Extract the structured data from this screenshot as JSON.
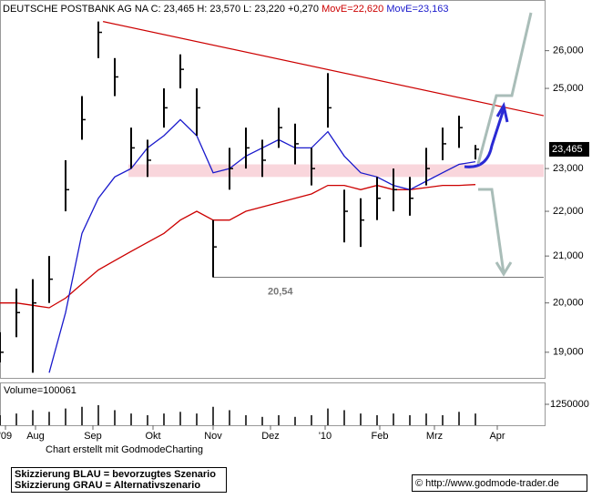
{
  "chart_data": {
    "type": "ohlc",
    "title": "DEUTSCHE POSTBANK AG NA",
    "quote": "C: 23,465 H: 23,570 L: 23,220 +0,270",
    "log_scale": true,
    "xlim": [
      0,
      199
    ],
    "ylim": [
      18500,
      27200
    ],
    "yticks": [
      {
        "value": 19000,
        "label": "19,000"
      },
      {
        "value": 20000,
        "label": "20,000"
      },
      {
        "value": 21000,
        "label": "21,000"
      },
      {
        "value": 22000,
        "label": "22,000"
      },
      {
        "value": 23000,
        "label": "23,000"
      },
      {
        "value": 25000,
        "label": "25,000"
      },
      {
        "value": 26000,
        "label": "26,000"
      }
    ],
    "xticks": [
      {
        "value": 2,
        "label": "'09"
      },
      {
        "value": 13,
        "label": "Aug"
      },
      {
        "value": 34,
        "label": "Sep"
      },
      {
        "value": 56,
        "label": "Okt"
      },
      {
        "value": 78,
        "label": "Nov"
      },
      {
        "value": 99,
        "label": "Dez"
      },
      {
        "value": 119,
        "label": "'10"
      },
      {
        "value": 139,
        "label": "Feb"
      },
      {
        "value": 159,
        "label": "Mrz"
      },
      {
        "value": 182,
        "label": "Apr"
      }
    ],
    "x": [
      0,
      6,
      12,
      18,
      24,
      30,
      36,
      42,
      48,
      54,
      60,
      66,
      72,
      78,
      84,
      90,
      96,
      102,
      108,
      114,
      120,
      126,
      132,
      138,
      144,
      150,
      156,
      162,
      168,
      174
    ],
    "high": [
      19400,
      20300,
      20500,
      21000,
      23200,
      24800,
      26800,
      25800,
      24000,
      23700,
      25000,
      25900,
      25000,
      21800,
      23500,
      24000,
      23700,
      24500,
      24100,
      23500,
      25400,
      22500,
      22300,
      22800,
      23000,
      22800,
      23500,
      24000,
      24300,
      23570
    ],
    "low": [
      18800,
      19300,
      18600,
      20000,
      22000,
      23700,
      25800,
      24800,
      23000,
      22800,
      24000,
      25000,
      23800,
      20540,
      22500,
      23000,
      22800,
      23500,
      23100,
      22600,
      24000,
      21300,
      21200,
      21800,
      22000,
      21900,
      22600,
      23200,
      23500,
      23220
    ],
    "close": [
      19000,
      19800,
      20000,
      20500,
      22500,
      24200,
      26500,
      25300,
      23500,
      23200,
      24500,
      25500,
      24500,
      21200,
      23000,
      23500,
      23200,
      24000,
      23600,
      23000,
      24500,
      22000,
      21800,
      22300,
      22500,
      22300,
      23000,
      23600,
      24000,
      23465
    ],
    "series": [
      {
        "name": "MovE=22,620",
        "color": "#cc0000",
        "values": [
          20000,
          20000,
          19950,
          19900,
          20100,
          20400,
          20700,
          20900,
          21100,
          21300,
          21500,
          21800,
          22000,
          21800,
          21800,
          22000,
          22100,
          22200,
          22300,
          22400,
          22600,
          22600,
          22500,
          22600,
          22500,
          22500,
          22550,
          22600,
          22600,
          22620
        ]
      },
      {
        "name": "MovE=23,163",
        "color": "#1a1acc",
        "values": [
          null,
          null,
          null,
          18600,
          19800,
          21500,
          22300,
          22800,
          23000,
          23500,
          23800,
          24200,
          23800,
          22900,
          23000,
          23300,
          23500,
          23700,
          23500,
          23500,
          23900,
          23300,
          22900,
          22800,
          22600,
          22500,
          22700,
          22900,
          23100,
          23163
        ]
      }
    ],
    "trendline": {
      "color": "#cc0000",
      "x": [
        37.7,
        199
      ],
      "y": [
        26800,
        24300
      ]
    },
    "support": {
      "value": 20540,
      "label": "20,54",
      "x_start": 78
    },
    "zone": {
      "y": [
        22800,
        23100
      ],
      "x_start": 47,
      "color": "#f9d6dc"
    },
    "price_marker": {
      "value": 23465,
      "label": "23,465"
    },
    "volume": {
      "label": "Volume=100061",
      "ylim": [
        0,
        2500000
      ],
      "yticks": [
        1250000
      ],
      "color": "#000000",
      "values": [
        600000,
        700000,
        900000,
        800000,
        1000000,
        1100000,
        1200000,
        900000,
        700000,
        600000,
        700000,
        800000,
        700000,
        1100000,
        900000,
        600000,
        500000,
        600000,
        500000,
        600000,
        1000000,
        900000,
        700000,
        600000,
        700000,
        600000,
        700000,
        600000,
        800000,
        700000
      ]
    },
    "credit": "Chart erstellt mit GodmodeCharting",
    "legend_notes": [
      "Skizzierung BLAU = bevorzugtes Szenario",
      "Skizzierung GRAU = Alternativszenario"
    ],
    "source": "© http://www.godmode-trader.de"
  }
}
